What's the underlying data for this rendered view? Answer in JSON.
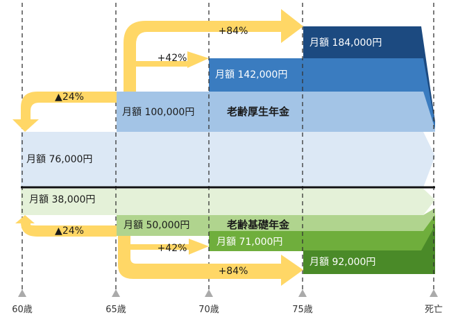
{
  "colors": {
    "arrow": "#ffd766",
    "kosei_base": "#dce8f5",
    "kosei_65": "#a3c4e6",
    "kosei_70": "#3a7cc0",
    "kosei_75": "#1c4a80",
    "kiso_base": "#e4f1d8",
    "kiso_65": "#b0d48e",
    "kiso_70": "#6fae3c",
    "kiso_75": "#4a8a28",
    "dashed": "#333333",
    "divider": "#111111",
    "marker": "#aaaaaa"
  },
  "axis": {
    "ticks": [
      "60歳",
      "65歳",
      "70歳",
      "75歳",
      "死亡"
    ]
  },
  "kosei": {
    "title": "老齢厚生年金",
    "b60": "月額 76,000円",
    "b65": "月額 100,000円",
    "b70": "月額 142,000円",
    "b75": "月額 184,000円"
  },
  "kiso": {
    "title": "老齢基礎年金",
    "b60": "月額 38,000円",
    "b65": "月額 50,000円",
    "b70": "月額 71,000円",
    "b75": "月額 92,000円"
  },
  "arrows": {
    "top_early": "▲24%",
    "top_42": "+42%",
    "top_84": "+84%",
    "bottom_early": "▲24%",
    "bottom_42": "+42%",
    "bottom_84": "+84%"
  }
}
